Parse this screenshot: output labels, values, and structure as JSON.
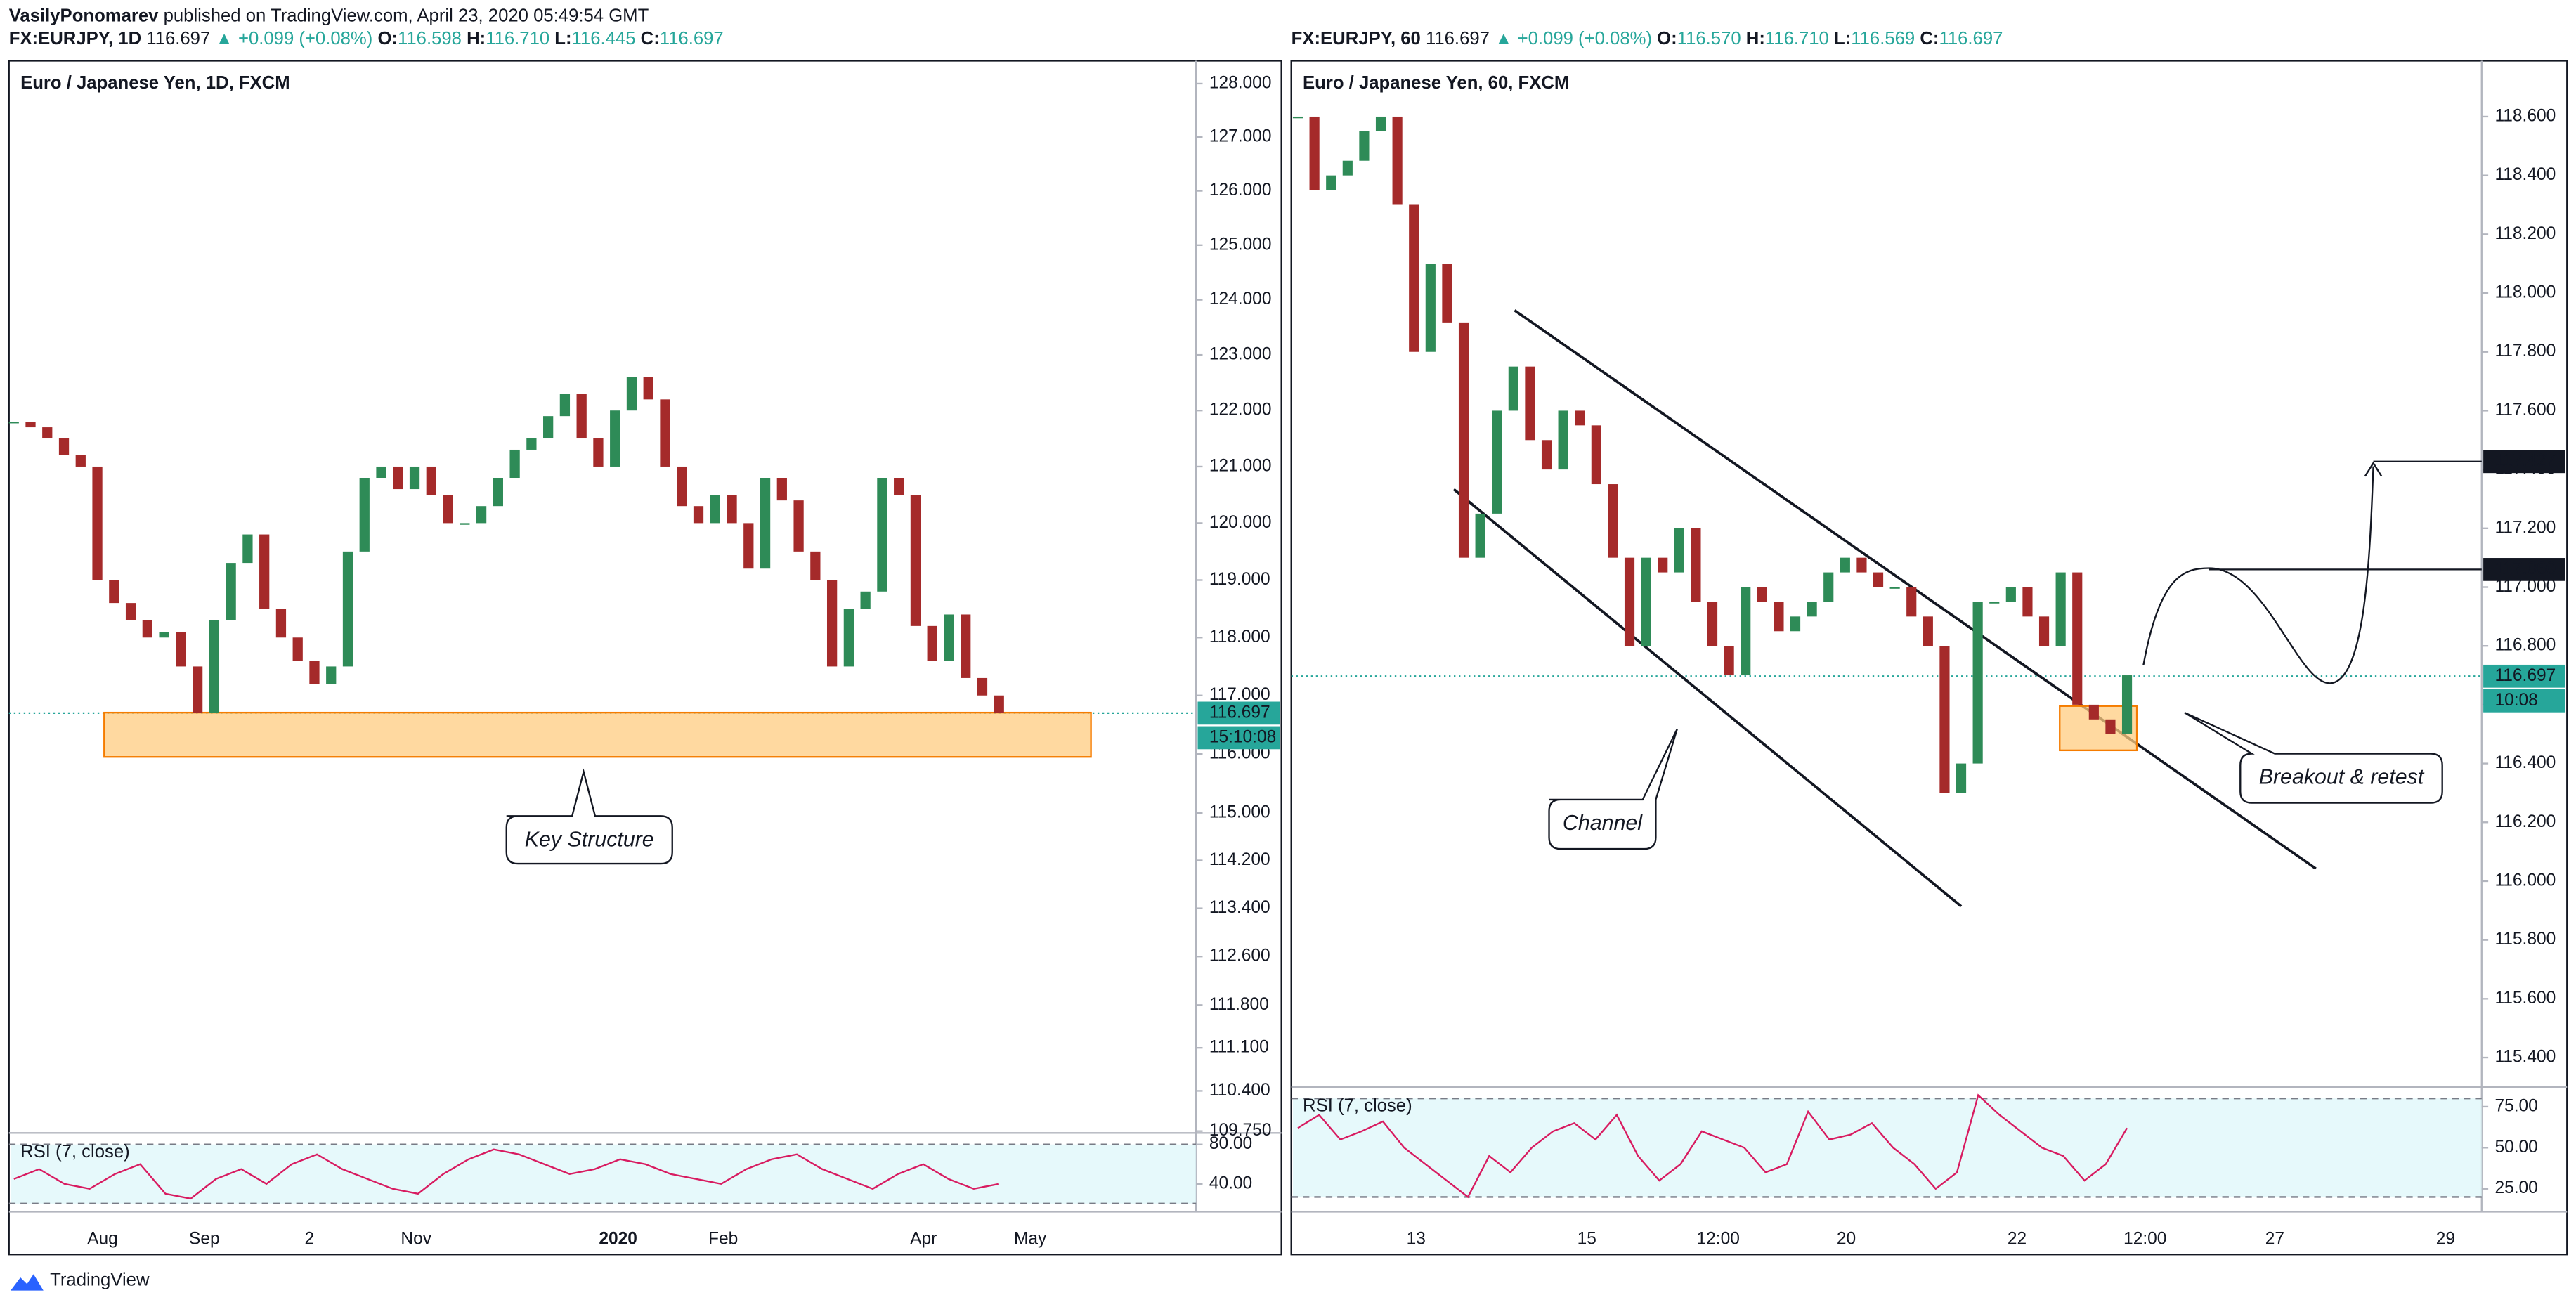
{
  "header": {
    "publisher": "VasilyPonomarev",
    "published": "published on TradingView.com, April 23, 2020 05:49:54 GMT"
  },
  "panels": [
    {
      "symbol": "FX:EURJPY, 1D",
      "last": 116.697,
      "change": "▲ +0.099 (+0.08%)",
      "ohlc": [
        {
          "key": "O:",
          "value": "116.598"
        },
        {
          "key": "H:",
          "value": "116.710"
        },
        {
          "key": "L:",
          "value": "116.445"
        },
        {
          "key": "C:",
          "value": "116.697"
        }
      ],
      "title": "Euro / Japanese Yen, 1D, FXCM",
      "countdown": "15:10:08",
      "log_scale": true,
      "ylim": [
        109.72,
        128.43
      ],
      "yticks": [
        {
          "value": 128,
          "label": "128.000"
        },
        {
          "value": 127,
          "label": "127.000"
        },
        {
          "value": 126,
          "label": "126.000"
        },
        {
          "value": 125,
          "label": "125.000"
        },
        {
          "value": 124,
          "label": "124.000"
        },
        {
          "value": 123,
          "label": "123.000"
        },
        {
          "value": 122,
          "label": "122.000"
        },
        {
          "value": 121,
          "label": "121.000"
        },
        {
          "value": 120,
          "label": "120.000"
        },
        {
          "value": 119,
          "label": "119.000"
        },
        {
          "value": 118,
          "label": "118.000"
        },
        {
          "value": 117,
          "label": "117.000"
        },
        {
          "value": 116,
          "label": "116.000"
        },
        {
          "value": 115,
          "label": "115.000"
        },
        {
          "value": 114.2,
          "label": "114.200"
        },
        {
          "value": 113.4,
          "label": "113.400"
        },
        {
          "value": 112.6,
          "label": "112.600"
        },
        {
          "value": 111.8,
          "label": "111.800"
        },
        {
          "value": 111.1,
          "label": "111.100"
        },
        {
          "value": 110.4,
          "label": "110.400"
        },
        {
          "value": 109.75,
          "label": "109.750"
        }
      ],
      "time_labels": [
        "Aug",
        "Sep",
        "2",
        "Nov",
        "2020",
        "Feb",
        "Apr",
        "May"
      ],
      "closes": [
        121.8,
        121.7,
        121.5,
        121.2,
        121.0,
        119.0,
        118.6,
        118.3,
        118.0,
        118.1,
        117.5,
        116.7,
        118.3,
        119.3,
        119.8,
        118.5,
        118.0,
        117.6,
        117.2,
        117.5,
        119.5,
        120.8,
        121.0,
        120.6,
        121.0,
        120.5,
        120.0,
        120.0,
        120.3,
        120.8,
        121.3,
        121.5,
        121.9,
        122.3,
        121.5,
        121.0,
        122.0,
        122.6,
        122.2,
        121.0,
        120.3,
        120.0,
        120.5,
        120.0,
        119.2,
        120.8,
        120.4,
        119.5,
        119.0,
        117.5,
        118.5,
        118.8,
        120.8,
        120.5,
        118.2,
        117.6,
        118.4,
        117.3,
        117.0,
        116.7
      ],
      "rsi_title": "RSI (7, close)",
      "rsi_ylim": [
        11.7,
        91.7
      ],
      "rsi_ticks": [
        {
          "value": 80,
          "label": "80.00"
        },
        {
          "value": 40,
          "label": "40.00"
        }
      ],
      "rsi_bands": [
        80,
        20
      ],
      "rsi": [
        45,
        55,
        40,
        35,
        50,
        60,
        30,
        25,
        45,
        55,
        40,
        60,
        70,
        55,
        45,
        35,
        30,
        50,
        65,
        75,
        70,
        60,
        50,
        55,
        65,
        60,
        50,
        45,
        40,
        55,
        65,
        70,
        55,
        45,
        35,
        50,
        60,
        45,
        35,
        40
      ],
      "annotations": [
        "Key Structure"
      ],
      "levels": []
    },
    {
      "symbol": "FX:EURJPY, 60",
      "last": 116.697,
      "change": "▲ +0.099 (+0.08%)",
      "ohlc": [
        {
          "key": "O:",
          "value": "116.570"
        },
        {
          "key": "H:",
          "value": "116.710"
        },
        {
          "key": "L:",
          "value": "116.569"
        },
        {
          "key": "C:",
          "value": "116.697"
        }
      ],
      "title": "Euro / Japanese Yen, 60, FXCM",
      "countdown": "10:08",
      "log_scale": false,
      "ylim": [
        115.3,
        118.79
      ],
      "yticks": [
        {
          "value": 118.6,
          "label": "118.600"
        },
        {
          "value": 118.4,
          "label": "118.400"
        },
        {
          "value": 118.2,
          "label": "118.200"
        },
        {
          "value": 118,
          "label": "118.000"
        },
        {
          "value": 117.8,
          "label": "117.800"
        },
        {
          "value": 117.6,
          "label": "117.600"
        },
        {
          "value": 117.4,
          "label": "117.400"
        },
        {
          "value": 117.2,
          "label": "117.200"
        },
        {
          "value": 117,
          "label": "117.000"
        },
        {
          "value": 116.8,
          "label": "116.800"
        },
        {
          "value": 116.6,
          "label": "116.600"
        },
        {
          "value": 116.4,
          "label": "116.400"
        },
        {
          "value": 116.2,
          "label": "116.200"
        },
        {
          "value": 116,
          "label": "116.000"
        },
        {
          "value": 115.8,
          "label": "115.800"
        },
        {
          "value": 115.6,
          "label": "115.600"
        },
        {
          "value": 115.4,
          "label": "115.400"
        }
      ],
      "time_labels": [
        "13",
        "15",
        "12:00",
        "20",
        "22",
        "12:00",
        "27",
        "29"
      ],
      "closes": [
        118.6,
        118.35,
        118.4,
        118.45,
        118.55,
        118.6,
        118.3,
        117.8,
        118.1,
        117.9,
        117.1,
        117.25,
        117.6,
        117.75,
        117.5,
        117.4,
        117.6,
        117.55,
        117.35,
        117.1,
        116.8,
        117.1,
        117.05,
        117.2,
        116.95,
        116.8,
        116.7,
        117.0,
        116.95,
        116.85,
        116.9,
        116.95,
        117.05,
        117.1,
        117.05,
        117.0,
        117.0,
        116.9,
        116.8,
        116.3,
        116.4,
        116.95,
        116.95,
        117.0,
        116.9,
        116.8,
        117.05,
        116.6,
        116.55,
        116.5,
        116.7
      ],
      "rsi_title": "RSI (7, close)",
      "rsi_ylim": [
        11,
        87
      ],
      "rsi_ticks": [
        {
          "value": 75,
          "label": "75.00"
        },
        {
          "value": 50,
          "label": "50.00"
        },
        {
          "value": 25,
          "label": "25.00"
        }
      ],
      "rsi_bands": [
        80,
        20
      ],
      "rsi": [
        62,
        70,
        55,
        60,
        66,
        50,
        40,
        30,
        20,
        45,
        35,
        50,
        60,
        65,
        55,
        70,
        45,
        30,
        40,
        60,
        55,
        50,
        35,
        40,
        72,
        55,
        58,
        65,
        50,
        40,
        25,
        35,
        82,
        70,
        60,
        50,
        45,
        30,
        40,
        62
      ],
      "annotations": [
        "Channel",
        "Breakout & retest"
      ],
      "levels": [
        {
          "value": 117.427,
          "label": "117.427"
        },
        {
          "value": 117.06,
          "label": "117.060"
        }
      ]
    }
  ],
  "footer": {
    "brand": "TradingView"
  }
}
